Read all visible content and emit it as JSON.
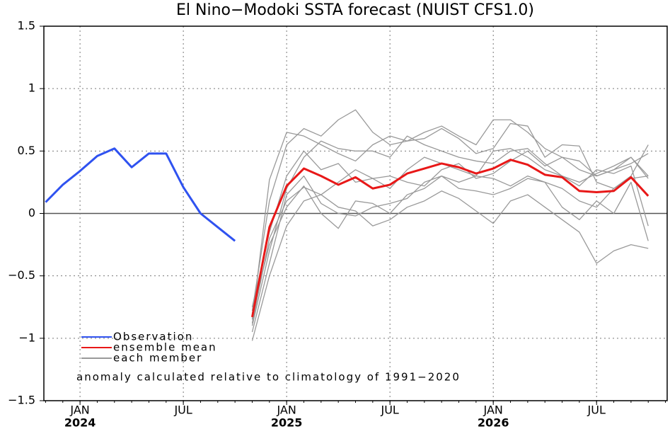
{
  "chart_data": {
    "type": "line",
    "title": "El Nino−Modoki SSTA forecast (NUIST CFS1.0)",
    "annotation": "anomaly calculated relative to climatology of 1991−2020",
    "xlim": [
      -2.1,
      34.1
    ],
    "ylim": [
      -1.5,
      1.5
    ],
    "yticks": [
      {
        "value": 1.5,
        "label": "1.5"
      },
      1,
      {
        "value": 0.5,
        "label": "0.5"
      },
      0,
      {
        "value": -0.5,
        "label": "−0.5"
      },
      {
        "value": -1,
        "label": "−1"
      },
      {
        "value": -1.5,
        "label": "−1.5"
      }
    ],
    "xticks": [
      {
        "value": 0,
        "label": "JAN"
      },
      {
        "value": 6,
        "label": "JUL"
      },
      {
        "value": 12,
        "label": "JAN"
      },
      {
        "value": 18,
        "label": "JUL"
      },
      {
        "value": 24,
        "label": "JAN"
      },
      {
        "value": 30,
        "label": "JUL"
      }
    ],
    "year_labels": [
      {
        "value": 0,
        "label": "2024"
      },
      {
        "value": 12,
        "label": "2025"
      },
      {
        "value": 24,
        "label": "2026"
      }
    ],
    "grid": true,
    "members": {
      "name": "each member",
      "color": "#999999",
      "x": [
        10,
        11,
        12,
        13,
        14,
        15,
        16,
        17,
        18,
        19,
        20,
        21,
        22,
        23,
        24,
        25,
        26,
        27,
        28,
        29,
        30,
        31,
        32,
        33
      ],
      "runs": [
        [
          -0.85,
          0.27,
          0.65,
          0.62,
          0.55,
          0.48,
          0.42,
          0.55,
          0.62,
          0.58,
          0.65,
          0.7,
          0.62,
          0.55,
          0.75,
          0.75,
          0.65,
          0.52,
          0.45,
          0.35,
          0.3,
          0.35,
          0.45,
          0.3
        ],
        [
          -0.78,
          0.1,
          0.55,
          0.68,
          0.62,
          0.75,
          0.83,
          0.65,
          0.55,
          0.58,
          0.6,
          0.68,
          0.6,
          0.48,
          0.52,
          0.72,
          0.7,
          0.45,
          0.55,
          0.54,
          0.25,
          0.2,
          0.3,
          0.55
        ],
        [
          -0.9,
          -0.3,
          0.2,
          0.45,
          0.58,
          0.52,
          0.5,
          0.5,
          0.45,
          0.62,
          0.55,
          0.5,
          0.45,
          0.42,
          0.4,
          0.5,
          0.52,
          0.4,
          0.3,
          0.25,
          0.32,
          0.38,
          0.45,
          0.28
        ],
        [
          -0.88,
          -0.2,
          0.1,
          0.21,
          0.15,
          0.25,
          0.35,
          0.28,
          0.3,
          0.25,
          0.22,
          0.35,
          0.4,
          0.28,
          0.32,
          0.42,
          0.5,
          0.38,
          0.45,
          0.42,
          0.3,
          0.35,
          0.4,
          0.48
        ],
        [
          -0.8,
          -0.25,
          0.05,
          0.22,
          0.0,
          -0.12,
          0.1,
          0.08,
          0.0,
          0.15,
          0.2,
          0.3,
          0.25,
          0.3,
          0.28,
          0.22,
          0.3,
          0.25,
          0.2,
          0.1,
          0.05,
          0.2,
          0.28,
          0.3
        ],
        [
          -1.02,
          -0.5,
          -0.1,
          0.1,
          0.15,
          0.05,
          0.02,
          -0.1,
          -0.05,
          0.05,
          0.1,
          0.18,
          0.12,
          0.02,
          -0.08,
          0.1,
          0.15,
          0.05,
          -0.05,
          -0.15,
          -0.4,
          -0.3,
          -0.25,
          -0.28
        ],
        [
          -0.95,
          -0.4,
          0.15,
          0.3,
          0.08,
          0.0,
          -0.02,
          0.05,
          0.08,
          0.12,
          0.25,
          0.3,
          0.2,
          0.18,
          0.15,
          0.2,
          0.28,
          0.25,
          0.05,
          -0.05,
          0.1,
          0.0,
          0.25,
          -0.22
        ],
        [
          -0.75,
          -0.15,
          0.3,
          0.5,
          0.35,
          0.4,
          0.25,
          0.28,
          0.2,
          0.35,
          0.45,
          0.4,
          0.35,
          0.3,
          0.5,
          0.52,
          0.45,
          0.35,
          0.3,
          0.22,
          0.35,
          0.32,
          0.38,
          -0.1
        ]
      ]
    },
    "series": [
      {
        "name": "Observation",
        "color": "#2f52f0",
        "x": [
          -2,
          -1,
          0,
          1,
          2,
          3,
          4,
          5,
          6,
          7,
          8,
          9
        ],
        "values": [
          0.09,
          0.23,
          0.34,
          0.46,
          0.52,
          0.37,
          0.48,
          0.48,
          0.21,
          0.0,
          -0.11,
          -0.22
        ]
      },
      {
        "name": "ensemble mean",
        "color": "#e81818",
        "x": [
          10,
          11,
          12,
          13,
          14,
          15,
          16,
          17,
          18,
          19,
          20,
          21,
          22,
          23,
          24,
          25,
          26,
          27,
          28,
          29,
          30,
          31,
          32,
          33
        ],
        "values": [
          -0.83,
          -0.11,
          0.22,
          0.36,
          0.3,
          0.23,
          0.29,
          0.2,
          0.23,
          0.32,
          0.36,
          0.4,
          0.37,
          0.32,
          0.36,
          0.43,
          0.39,
          0.31,
          0.29,
          0.18,
          0.17,
          0.18,
          0.29,
          0.14
        ]
      }
    ]
  }
}
